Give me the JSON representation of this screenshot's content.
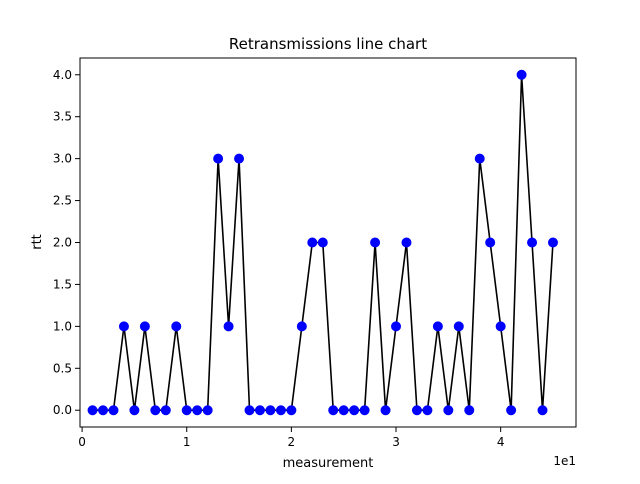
{
  "chart_data": {
    "type": "line",
    "title": "Retransmissions line chart",
    "xlabel": "measurement",
    "ylabel": "rtt",
    "x_offset_text": "1e1",
    "x": [
      1,
      2,
      3,
      4,
      5,
      6,
      7,
      8,
      9,
      10,
      11,
      12,
      13,
      14,
      15,
      16,
      17,
      18,
      19,
      20,
      21,
      22,
      23,
      24,
      25,
      26,
      27,
      28,
      29,
      30,
      31,
      32,
      33,
      34,
      35,
      36,
      37,
      38,
      39,
      40,
      41,
      42,
      43,
      44,
      45
    ],
    "series": [
      {
        "values": [
          0,
          0,
          0,
          1,
          0,
          1,
          0,
          0,
          1,
          0,
          0,
          0,
          3,
          1,
          3,
          0,
          0,
          0,
          0,
          0,
          1,
          2,
          2,
          0,
          0,
          0,
          0,
          2,
          0,
          1,
          2,
          0,
          0,
          1,
          0,
          1,
          0,
          3,
          2,
          1,
          0,
          4,
          2,
          0,
          2
        ],
        "line_color": "#000000",
        "marker_color": "#0000ff"
      }
    ],
    "xlim": [
      -0.2,
      47.2
    ],
    "ylim": [
      -0.2,
      4.2
    ],
    "xticks": [
      0,
      10,
      20,
      30,
      40
    ],
    "xtick_labels": [
      "0",
      "1",
      "2",
      "3",
      "4"
    ],
    "yticks": [
      0,
      0.5,
      1,
      1.5,
      2,
      2.5,
      3,
      3.5,
      4
    ],
    "ytick_labels": [
      "0.0",
      "0.5",
      "1.0",
      "1.5",
      "2.0",
      "2.5",
      "3.0",
      "3.5",
      "4.0"
    ],
    "grid": false,
    "legend": false
  }
}
